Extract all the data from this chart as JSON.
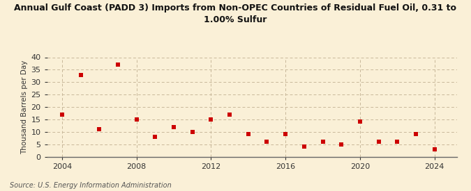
{
  "title": "Annual Gulf Coast (PADD 3) Imports from Non-OPEC Countries of Residual Fuel Oil, 0.31 to\n1.00% Sulfur",
  "ylabel": "Thousand Barrels per Day",
  "source": "Source: U.S. Energy Information Administration",
  "years": [
    2004,
    2005,
    2006,
    2007,
    2008,
    2009,
    2010,
    2011,
    2012,
    2013,
    2014,
    2015,
    2016,
    2017,
    2018,
    2019,
    2020,
    2021,
    2022,
    2023,
    2024
  ],
  "values": [
    17,
    33,
    11,
    37,
    15,
    8,
    12,
    10,
    15,
    17,
    9,
    6,
    9,
    4,
    6,
    5,
    14,
    6,
    6,
    9,
    3
  ],
  "marker_color": "#cc0000",
  "marker_size": 18,
  "background_color": "#faf0d7",
  "grid_color": "#c8b89a",
  "ylim": [
    0,
    40
  ],
  "yticks": [
    0,
    5,
    10,
    15,
    20,
    25,
    30,
    35,
    40
  ],
  "xticks": [
    2004,
    2008,
    2012,
    2016,
    2020,
    2024
  ],
  "title_fontsize": 9,
  "ylabel_fontsize": 7.5,
  "tick_fontsize": 8,
  "source_fontsize": 7
}
